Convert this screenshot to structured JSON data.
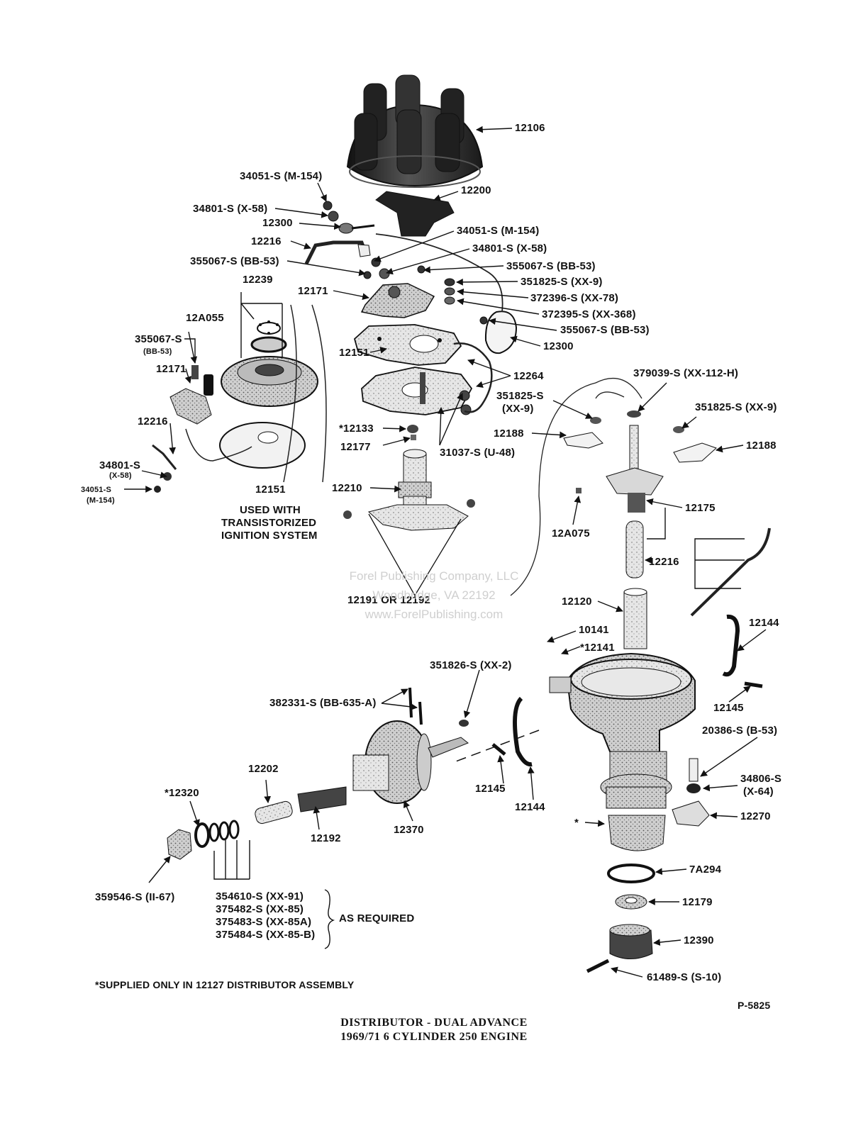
{
  "labels": {
    "cap": "12106",
    "rotor": "12200",
    "nut_a": "34051-S (M-154)",
    "washer_a": "34801-S (X-58)",
    "cond_a": "12300",
    "wire_a": "12216",
    "screw_a": "355067-S (BB-53)",
    "nut_b": "34051-S (M-154)",
    "washer_b": "34801-S (X-58)",
    "screw_b": "355067-S (BB-53)",
    "clip_a": "351825-S (XX-9)",
    "washer_c": "372396-S (XX-78)",
    "washer_d": "372395-S (XX-368)",
    "screw_c": "355067-S (BB-53)",
    "cond_b": "12300",
    "points": "12171",
    "plate_up": "12151",
    "wire_b": "12264",
    "t_12239": "12239",
    "t_12A055": "12A055",
    "t_355067": "355067-S",
    "t_bb53": "(BB-53)",
    "t_12171b": "12171",
    "t_12216b": "12216",
    "t_34801b": "34801-S",
    "t_x58b": "(X-58)",
    "t_34051b": "34051-S",
    "t_m154b": "(M-154)",
    "t_12151b": "12151",
    "transistor_note": [
      "USED WITH",
      "TRANSISTORIZED",
      "IGNITION SYSTEM"
    ],
    "t_12133": "*12133",
    "t_12177": "12177",
    "t_31037": "31037-S (U-48)",
    "t_12210": "12210",
    "t_12191": "12191 OR 12192",
    "t_379039": "379039-S (XX-112-H)",
    "t_351825l": "351825-S",
    "t_xx9l": "(XX-9)",
    "t_351825r": "351825-S (XX-9)",
    "t_12188l": "12188",
    "t_12188r": "12188",
    "t_12175": "12175",
    "t_12A075": "12A075",
    "t_12216c": "12216",
    "t_12120": "12120",
    "t_10141": "10141",
    "t_12141": "*12141",
    "t_12144a": "12144",
    "t_351826": "351826-S (XX-2)",
    "t_382331": "382331-S (BB-635-A)",
    "t_12145a": "12145",
    "t_20386": "20386-S (B-53)",
    "t_12202": "12202",
    "t_12320": "*12320",
    "t_12145b": "12145",
    "t_12144b": "12144",
    "t_34806": "34806-S",
    "t_x64": "(X-64)",
    "t_12270": "12270",
    "t_12192": "12192",
    "t_12370": "12370",
    "t_star": "*",
    "t_7A294": "7A294",
    "t_12179": "12179",
    "t_359546": "359546-S (II-67)",
    "washers": [
      "354610-S (XX-91)",
      "375482-S (XX-85)",
      "375483-S (XX-85A)",
      "375484-S (XX-85-B)"
    ],
    "as_required": "AS REQUIRED",
    "t_12390": "12390",
    "t_61489": "61489-S (S-10)",
    "footnote": "*SUPPLIED ONLY IN 12127 DISTRIBUTOR ASSEMBLY",
    "figure_no": "P-5825"
  },
  "watermark": [
    "Forel Publishing Company, LLC",
    "Woodbridge, VA 22192",
    "www.ForelPublishing.com"
  ],
  "title_lines": [
    "DISTRIBUTOR - DUAL ADVANCE",
    "1969/71  6 CYLINDER 250 ENGINE"
  ],
  "colors": {
    "ink": "#111111",
    "part_dark": "#2a2a2a",
    "part_mid": "#8a8a8a",
    "part_light": "#d6d6d6",
    "watermark": "#cfcfcf"
  }
}
